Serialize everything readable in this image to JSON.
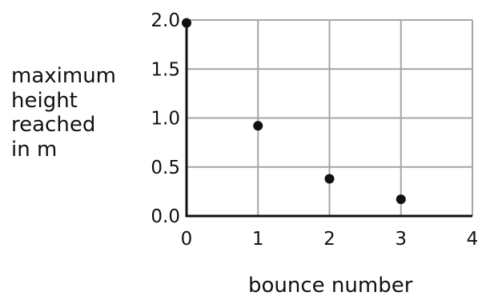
{
  "chart_data": {
    "type": "scatter",
    "title": "",
    "xlabel": "bounce number",
    "ylabel_lines": [
      "maximum",
      "height",
      "reached",
      "in m"
    ],
    "x": [
      0,
      1,
      2,
      3
    ],
    "y": [
      1.97,
      0.92,
      0.38,
      0.17
    ],
    "xlim": [
      0,
      4
    ],
    "ylim": [
      0,
      2.0
    ],
    "x_ticks": [
      "0",
      "1",
      "2",
      "3",
      "4"
    ],
    "y_ticks": [
      "0.0",
      "0.5",
      "1.0",
      "1.5",
      "2.0"
    ],
    "grid": true,
    "point_color": "#111111",
    "grid_color": "#a6a6a6",
    "axis_color": "#111111"
  }
}
